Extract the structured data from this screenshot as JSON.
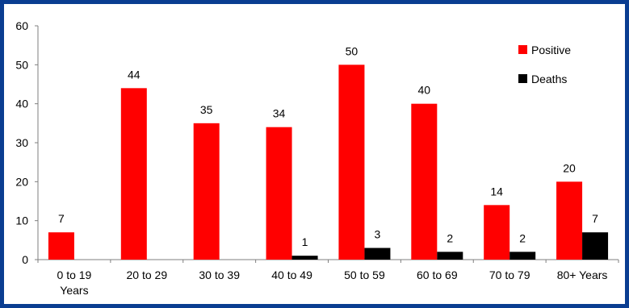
{
  "chart_data": {
    "type": "bar",
    "categories": [
      "0 to 19 Years",
      "20 to 29",
      "30 to 39",
      "40 to 49",
      "50 to 59",
      "60 to 69",
      "70 to 79",
      "80+ Years"
    ],
    "category_labels": [
      [
        "0 to 19",
        "Years"
      ],
      [
        "20 to 29"
      ],
      [
        "30 to 39"
      ],
      [
        "40 to 49"
      ],
      [
        "50 to 59"
      ],
      [
        "60 to 69"
      ],
      [
        "70 to 79"
      ],
      [
        "80+ Years"
      ]
    ],
    "series": [
      {
        "name": "Positive",
        "color": "#ff0000",
        "values": [
          7,
          44,
          35,
          34,
          50,
          40,
          14,
          20
        ],
        "data_labels": [
          "7",
          "44",
          "35",
          "34",
          "50",
          "40",
          "14",
          "20"
        ]
      },
      {
        "name": "Deaths",
        "color": "#000000",
        "values": [
          0,
          0,
          0,
          1,
          3,
          2,
          2,
          7
        ],
        "data_labels": [
          "",
          "",
          "",
          "1",
          "3",
          "2",
          "2",
          "7"
        ]
      }
    ],
    "yticks": [
      "0",
      "10",
      "20",
      "30",
      "40",
      "50",
      "60"
    ],
    "ylim": [
      0,
      60
    ],
    "grid": false,
    "legend_position": "top-right",
    "background_color": "#ffffff",
    "border_color": "#0a3d91"
  }
}
